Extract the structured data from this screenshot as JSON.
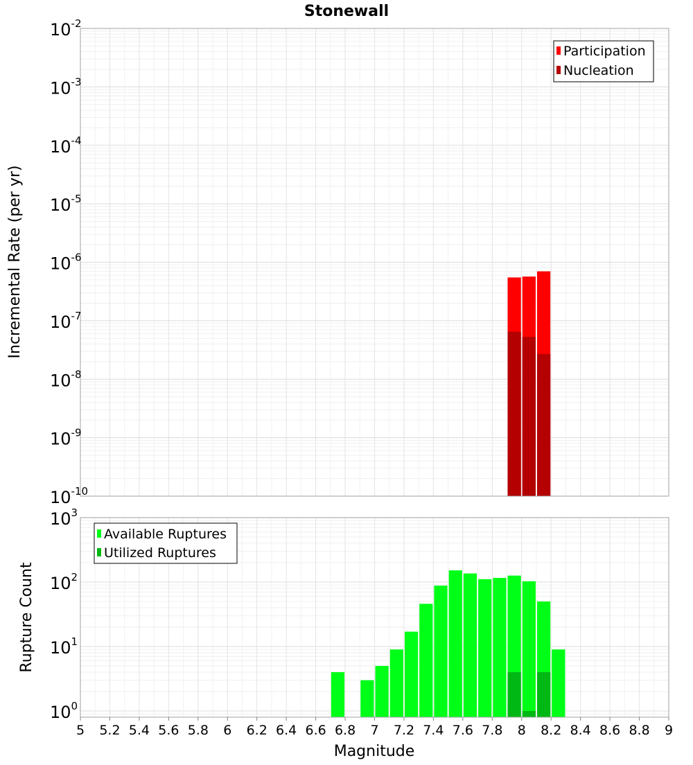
{
  "chart_data": [
    {
      "type": "bar",
      "title": "Stonewall",
      "xlabel": "Magnitude",
      "ylabel": "Incremental Rate (per yr)",
      "xlim": [
        5,
        9
      ],
      "ylim": [
        1e-10,
        0.01
      ],
      "yscale": "log",
      "grid": true,
      "legend_position": "top-right",
      "bar_width": 0.1,
      "x_ticks": [
        "5",
        "5.2",
        "5.4",
        "5.6",
        "5.8",
        "6",
        "6.2",
        "6.4",
        "6.6",
        "6.8",
        "7",
        "7.2",
        "7.4",
        "7.6",
        "7.8",
        "8",
        "8.2",
        "8.4",
        "8.6",
        "8.8",
        "9"
      ],
      "y_tick_exponents": [
        "-2",
        "-3",
        "-4",
        "-5",
        "-6",
        "-7",
        "-8",
        "-9",
        "-10"
      ],
      "series": [
        {
          "name": "Participation",
          "color": "#ff0000",
          "x": [
            7.95,
            8.05,
            8.15
          ],
          "values": [
            5.5e-07,
            5.7e-07,
            7e-07
          ]
        },
        {
          "name": "Nucleation",
          "color": "#b40000",
          "x": [
            7.95,
            8.05,
            8.15
          ],
          "values": [
            6.5e-08,
            5.3e-08,
            2.7e-08
          ]
        }
      ]
    },
    {
      "type": "bar",
      "title": "",
      "xlabel": "Magnitude",
      "ylabel": "Rupture Count",
      "xlim": [
        5,
        9
      ],
      "ylim": [
        0.8,
        1000
      ],
      "yscale": "log",
      "grid": true,
      "legend_position": "top-left",
      "bar_width": 0.1,
      "x_ticks": [
        "5",
        "5.2",
        "5.4",
        "5.6",
        "5.8",
        "6",
        "6.2",
        "6.4",
        "6.6",
        "6.8",
        "7",
        "7.2",
        "7.4",
        "7.6",
        "7.8",
        "8",
        "8.2",
        "8.4",
        "8.6",
        "8.8",
        "9"
      ],
      "y_tick_exponents": [
        "3",
        "2",
        "1",
        "0"
      ],
      "series": [
        {
          "name": "Available Ruptures",
          "color": "#00ff17",
          "x": [
            6.75,
            6.95,
            7.05,
            7.15,
            7.25,
            7.35,
            7.45,
            7.55,
            7.65,
            7.75,
            7.85,
            7.95,
            8.05,
            8.15,
            8.25
          ],
          "values": [
            4,
            3,
            5,
            9,
            17,
            46,
            88,
            152,
            136,
            111,
            116,
            126,
            103,
            50,
            9
          ]
        },
        {
          "name": "Utilized Ruptures",
          "color": "#00b814",
          "x": [
            7.95,
            8.05,
            8.15
          ],
          "values": [
            4,
            1,
            4
          ]
        }
      ]
    }
  ]
}
